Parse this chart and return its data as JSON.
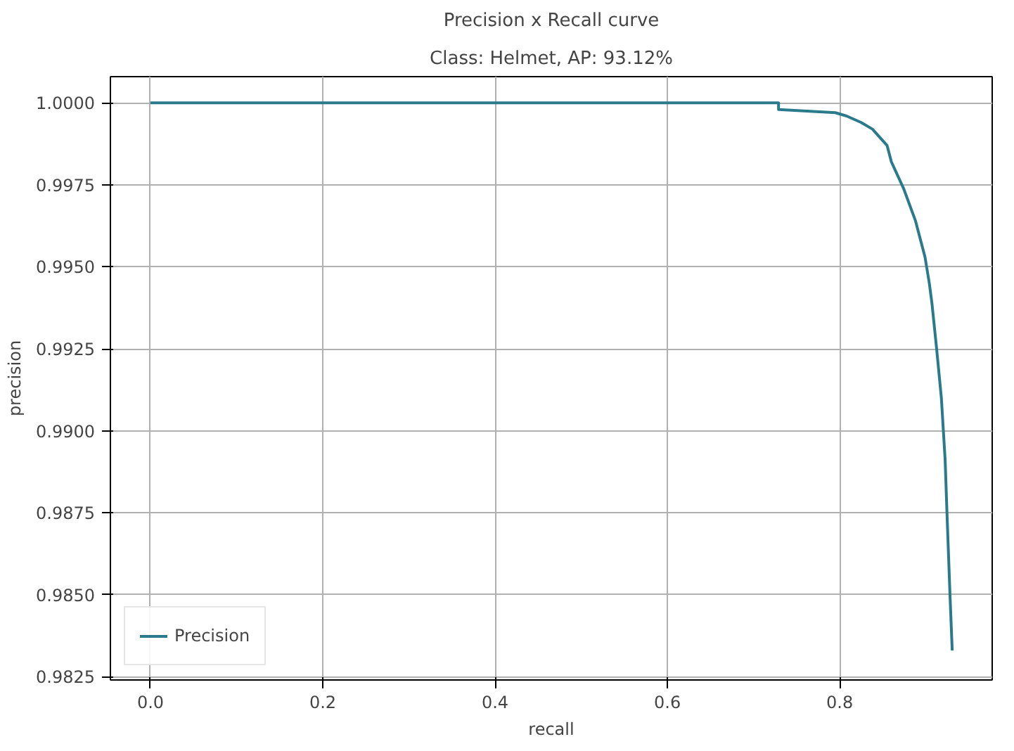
{
  "chart_data": {
    "type": "line",
    "title": "Precision x Recall curve",
    "subtitle": "Class: Helmet, AP: 93.12%",
    "xlabel": "recall",
    "ylabel": "precision",
    "xlim": [
      -0.0465,
      0.977
    ],
    "ylim": [
      0.9824,
      1.0008
    ],
    "xticks": [
      {
        "value": 0,
        "label": "0.0"
      },
      {
        "value": 0.2,
        "label": "0.2"
      },
      {
        "value": 0.4,
        "label": "0.4"
      },
      {
        "value": 0.6,
        "label": "0.6"
      },
      {
        "value": 0.8,
        "label": "0.8"
      }
    ],
    "yticks": [
      {
        "value": 0.9825,
        "label": "0.9825"
      },
      {
        "value": 0.985,
        "label": "0.9850"
      },
      {
        "value": 0.9875,
        "label": "0.9875"
      },
      {
        "value": 0.99,
        "label": "0.9900"
      },
      {
        "value": 0.9925,
        "label": "0.9925"
      },
      {
        "value": 0.995,
        "label": "0.9950"
      },
      {
        "value": 0.9975,
        "label": "0.9975"
      },
      {
        "value": 1.0,
        "label": "1.0000"
      }
    ],
    "grid": true,
    "legend": "bottom left",
    "marker": "none",
    "line_style": "solid",
    "x": [
      0,
      0.729,
      0.729,
      0.795,
      0.808,
      0.825,
      0.838,
      0.855,
      0.86,
      0.874,
      0.888,
      0.899,
      0.904,
      0.907,
      0.9125,
      0.918,
      0.9224,
      0.9245,
      0.928,
      0.9306
    ],
    "series": [
      {
        "name": "Precision",
        "color": "#2a7a8c",
        "values": [
          1.0,
          1.0,
          0.9998,
          0.9997,
          0.9996,
          0.9994,
          0.9992,
          0.9987,
          0.9982,
          0.9974,
          0.9964,
          0.9953,
          0.9945,
          0.9939,
          0.9925,
          0.991,
          0.9891,
          0.9875,
          0.985,
          0.9833
        ]
      }
    ]
  }
}
